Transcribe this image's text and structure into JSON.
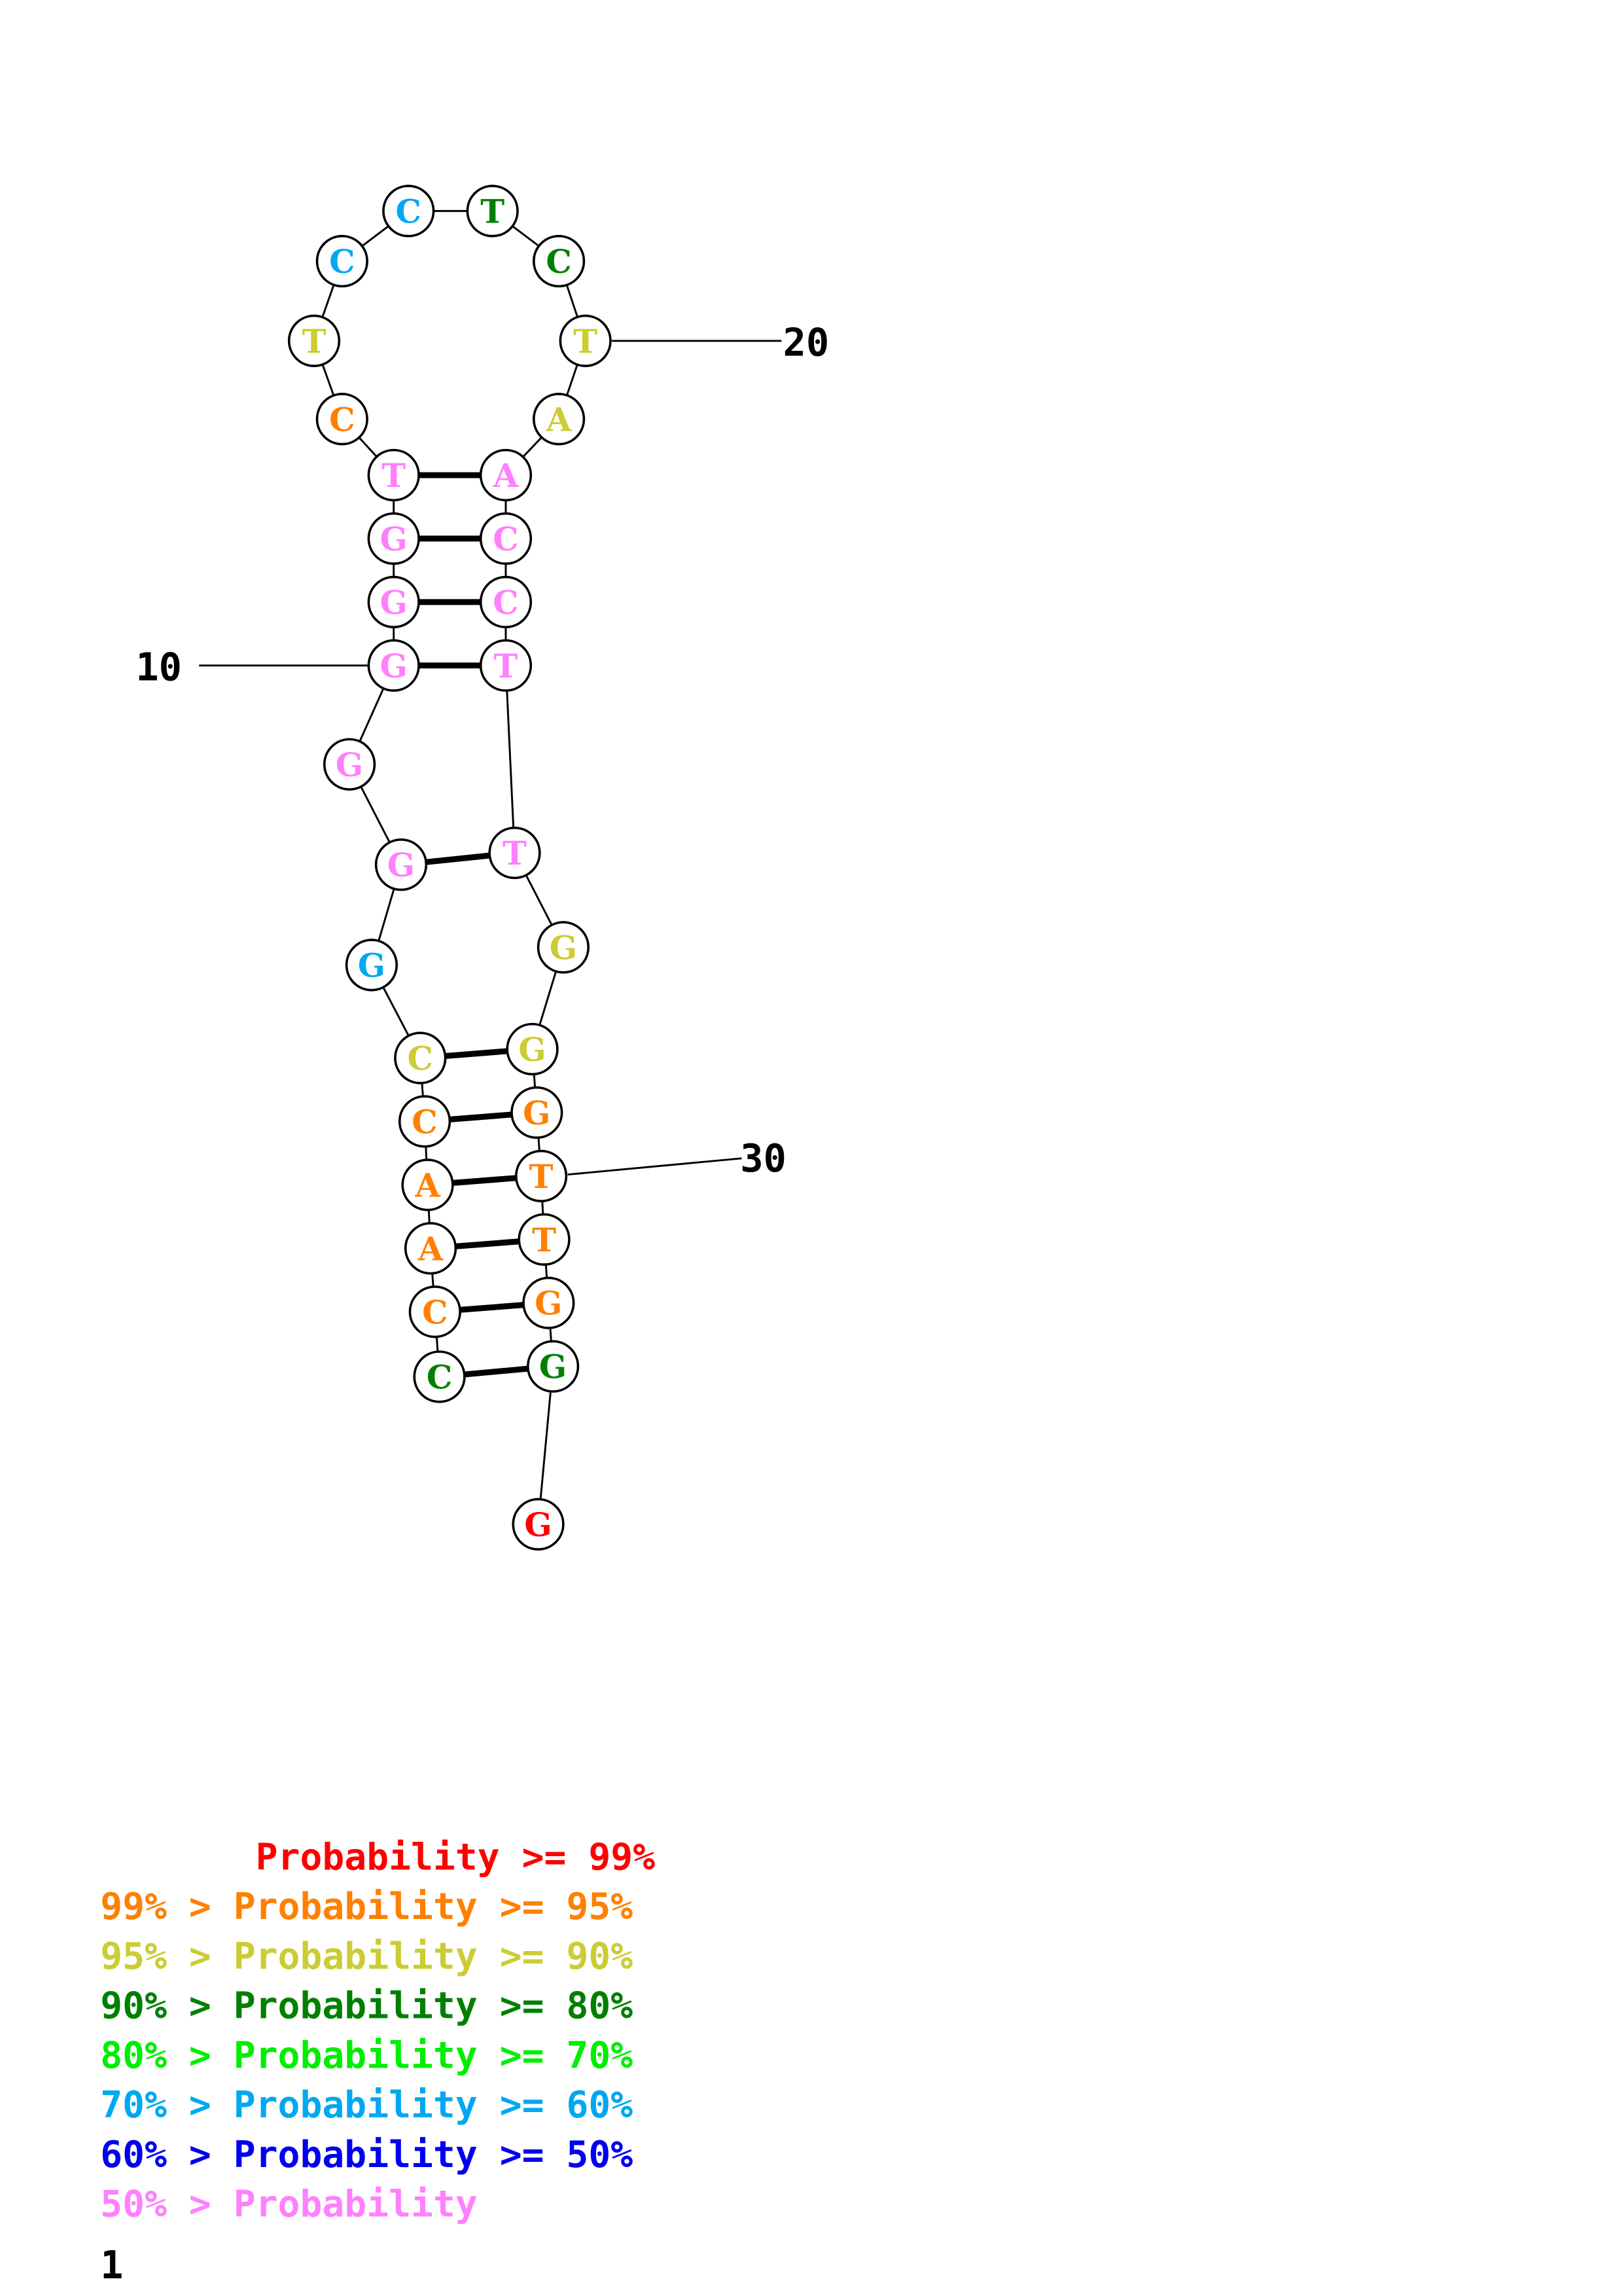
{
  "colors": {
    "p99": "#ff0000",
    "p95": "#ff8000",
    "p90": "#cccc33",
    "p80": "#008000",
    "p70": "#00ee00",
    "p60": "#00a8f0",
    "p50": "#0000ee",
    "low": "#ff80ff"
  },
  "structure": {
    "nucleotides": [
      {
        "base": "C",
        "prob": "p80"
      },
      {
        "base": "C",
        "prob": "p95"
      },
      {
        "base": "A",
        "prob": "p95"
      },
      {
        "base": "A",
        "prob": "p95"
      },
      {
        "base": "C",
        "prob": "p95"
      },
      {
        "base": "C",
        "prob": "p90"
      },
      {
        "base": "G",
        "prob": "p60"
      },
      {
        "base": "G",
        "prob": "low"
      },
      {
        "base": "G",
        "prob": "low"
      },
      {
        "base": "G",
        "prob": "low"
      },
      {
        "base": "G",
        "prob": "low"
      },
      {
        "base": "G",
        "prob": "low"
      },
      {
        "base": "T",
        "prob": "low"
      },
      {
        "base": "C",
        "prob": "p95"
      },
      {
        "base": "T",
        "prob": "p90"
      },
      {
        "base": "C",
        "prob": "p60"
      },
      {
        "base": "C",
        "prob": "p60"
      },
      {
        "base": "T",
        "prob": "p80"
      },
      {
        "base": "C",
        "prob": "p80"
      },
      {
        "base": "T",
        "prob": "p90"
      },
      {
        "base": "A",
        "prob": "p90"
      },
      {
        "base": "A",
        "prob": "low"
      },
      {
        "base": "C",
        "prob": "low"
      },
      {
        "base": "C",
        "prob": "low"
      },
      {
        "base": "T",
        "prob": "low"
      },
      {
        "base": "T",
        "prob": "low"
      },
      {
        "base": "G",
        "prob": "p90"
      },
      {
        "base": "G",
        "prob": "p90"
      },
      {
        "base": "G",
        "prob": "p95"
      },
      {
        "base": "T",
        "prob": "p95"
      },
      {
        "base": "T",
        "prob": "p95"
      },
      {
        "base": "G",
        "prob": "p95"
      },
      {
        "base": "G",
        "prob": "p80"
      },
      {
        "base": "G",
        "prob": "p99"
      }
    ],
    "pairs": [
      [
        1,
        33
      ],
      [
        2,
        32
      ],
      [
        3,
        31
      ],
      [
        4,
        30
      ],
      [
        5,
        29
      ],
      [
        6,
        28
      ],
      [
        8,
        26
      ],
      [
        10,
        25
      ],
      [
        11,
        24
      ],
      [
        12,
        23
      ],
      [
        13,
        22
      ]
    ],
    "index_labels": [
      "10",
      "20",
      "30"
    ]
  },
  "legend": [
    {
      "text": "       Probability >= 99%",
      "prob": "p99"
    },
    {
      "text": "99% > Probability >= 95%",
      "prob": "p95"
    },
    {
      "text": "95% > Probability >= 90%",
      "prob": "p90"
    },
    {
      "text": "90% > Probability >= 80%",
      "prob": "p80"
    },
    {
      "text": "80% > Probability >= 70%",
      "prob": "p70"
    },
    {
      "text": "70% > Probability >= 60%",
      "prob": "p60"
    },
    {
      "text": "60% > Probability >= 50%",
      "prob": "p50"
    },
    {
      "text": "50% > Probability",
      "prob": "low"
    }
  ],
  "footer_label": "1"
}
